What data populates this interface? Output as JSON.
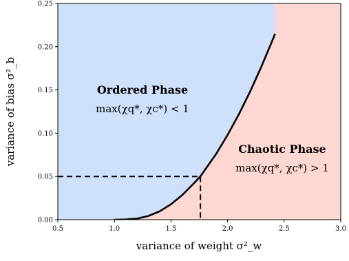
{
  "chart_data": {
    "type": "area",
    "xlabel": "variance of weight σ²_w",
    "ylabel": "variance of bias σ²_b",
    "xlim": [
      0.5,
      3.0
    ],
    "ylim": [
      0.0,
      0.25
    ],
    "x_ticks": [
      "0.5",
      "1.0",
      "1.5",
      "2.0",
      "2.5",
      "3.0"
    ],
    "y_ticks": [
      "0.00",
      "0.05",
      "0.10",
      "0.15",
      "0.20",
      "0.25"
    ],
    "grid": false,
    "regions": [
      {
        "name": "Ordered Phase",
        "condition": "max(χq*, χc*) < 1",
        "color": "#cfe0fb",
        "side": "left"
      },
      {
        "name": "Chaotic Phase",
        "condition": "max(χq*, χc*) > 1",
        "color": "#fdd8d2",
        "side": "right"
      }
    ],
    "boundary": {
      "x": [
        1.0,
        1.1,
        1.2,
        1.3,
        1.4,
        1.5,
        1.6,
        1.7,
        1.76,
        1.8,
        1.9,
        2.0,
        2.1,
        2.2,
        2.3,
        2.4,
        2.42
      ],
      "y": [
        0.0,
        0.0002,
        0.0013,
        0.0043,
        0.0097,
        0.0178,
        0.0285,
        0.0418,
        0.05,
        0.0576,
        0.0763,
        0.0979,
        0.1218,
        0.1483,
        0.1772,
        0.2085,
        0.215
      ]
    },
    "annotation": {
      "point": [
        1.76,
        0.05
      ],
      "style": "dashed guide lines to axes"
    }
  }
}
